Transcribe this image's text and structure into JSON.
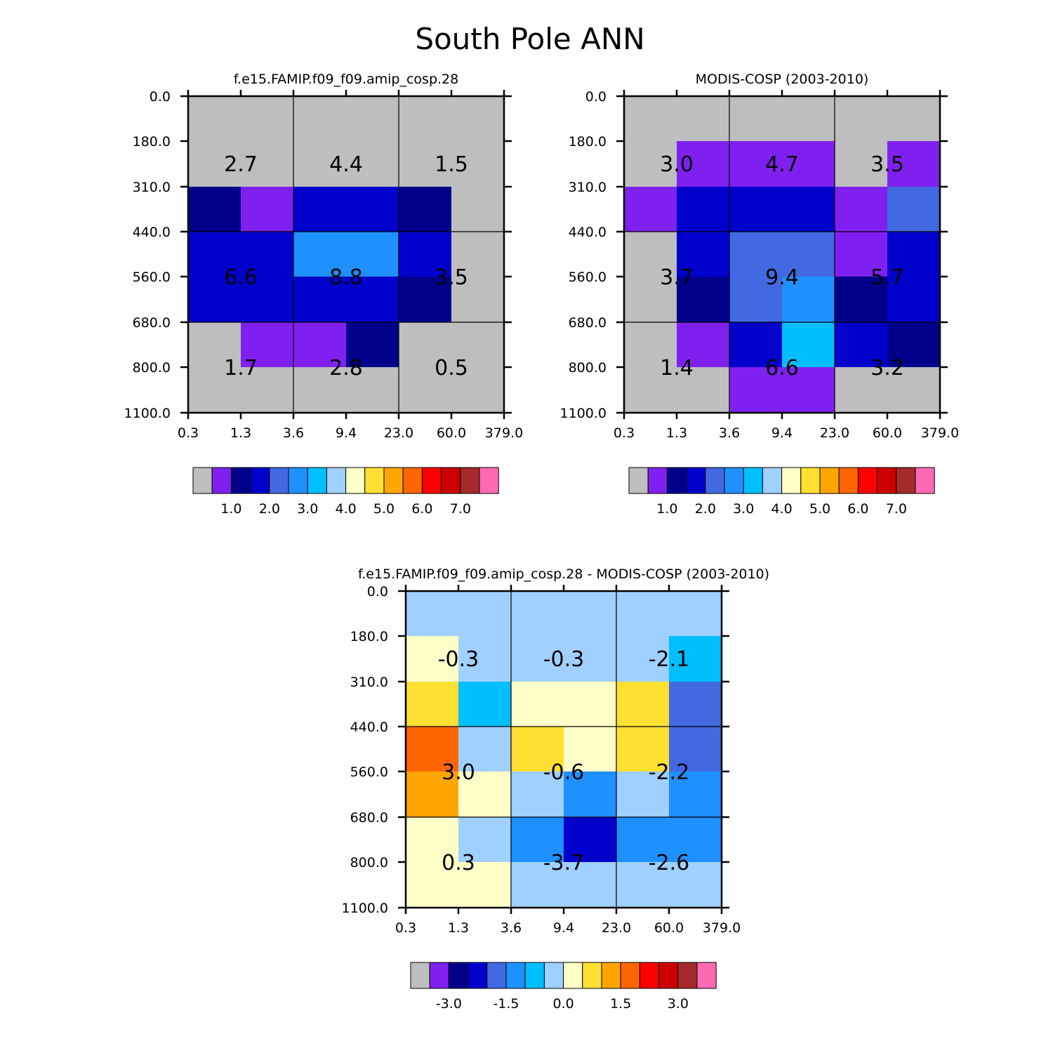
{
  "figure_title": "South Pole ANN",
  "chart_data": [
    {
      "type": "heatmap",
      "title": "f.e15.FAMIP.f09_f09.amip_cosp.28",
      "x_ticks": [
        "0.3",
        "1.3",
        "3.6",
        "9.4",
        "23.0",
        "60.0",
        "379.0"
      ],
      "y_ticks": [
        "0.0",
        "180.0",
        "310.0",
        "440.0",
        "560.0",
        "680.0",
        "800.0",
        "1100.0"
      ],
      "grid": [
        [
          0,
          0,
          0,
          0,
          0,
          0
        ],
        [
          0,
          0,
          0,
          0,
          0,
          0
        ],
        [
          2,
          1,
          3,
          3,
          2,
          0
        ],
        [
          3,
          3,
          5,
          5,
          3,
          0
        ],
        [
          3,
          3,
          3,
          3,
          2,
          0
        ],
        [
          0,
          1,
          1,
          2,
          0,
          0
        ],
        [
          0,
          0,
          0,
          0,
          0,
          0
        ]
      ],
      "box_values": [
        [
          "2.7",
          "4.4",
          "1.5"
        ],
        [
          "6.6",
          "8.8",
          "3.5"
        ],
        [
          "1.7",
          "2.8",
          "0.5"
        ]
      ],
      "colorbar": {
        "labels": [
          "1.0",
          "2.0",
          "3.0",
          "4.0",
          "5.0",
          "6.0",
          "7.0"
        ],
        "label_after_box": [
          2,
          4,
          6,
          8,
          10,
          12,
          14
        ]
      }
    },
    {
      "type": "heatmap",
      "title": "MODIS-COSP (2003-2010)",
      "x_ticks": [
        "0.3",
        "1.3",
        "3.6",
        "9.4",
        "23.0",
        "60.0",
        "379.0"
      ],
      "y_ticks": [
        "0.0",
        "180.0",
        "310.0",
        "440.0",
        "560.0",
        "680.0",
        "800.0",
        "1100.0"
      ],
      "grid": [
        [
          0,
          0,
          0,
          0,
          0,
          0
        ],
        [
          0,
          1,
          1,
          1,
          0,
          1
        ],
        [
          1,
          3,
          3,
          3,
          1,
          4
        ],
        [
          0,
          3,
          4,
          4,
          1,
          3
        ],
        [
          0,
          2,
          4,
          5,
          2,
          3
        ],
        [
          0,
          1,
          3,
          6,
          3,
          2
        ],
        [
          0,
          0,
          1,
          1,
          0,
          0
        ]
      ],
      "box_values": [
        [
          "3.0",
          "4.7",
          "3.5"
        ],
        [
          "3.7",
          "9.4",
          "5.7"
        ],
        [
          "1.4",
          "6.6",
          "3.2"
        ]
      ],
      "colorbar": {
        "labels": [
          "1.0",
          "2.0",
          "3.0",
          "4.0",
          "5.0",
          "6.0",
          "7.0"
        ],
        "label_after_box": [
          2,
          4,
          6,
          8,
          10,
          12,
          14
        ]
      }
    },
    {
      "type": "heatmap",
      "title": "f.e15.FAMIP.f09_f09.amip_cosp.28 - MODIS-COSP (2003-2010)",
      "x_ticks": [
        "0.3",
        "1.3",
        "3.6",
        "9.4",
        "23.0",
        "60.0",
        "379.0"
      ],
      "y_ticks": [
        "0.0",
        "180.0",
        "310.0",
        "440.0",
        "560.0",
        "680.0",
        "800.0",
        "1100.0"
      ],
      "grid": [
        [
          7,
          7,
          7,
          7,
          7,
          7
        ],
        [
          8,
          7,
          7,
          7,
          7,
          6
        ],
        [
          9,
          6,
          8,
          8,
          9,
          4
        ],
        [
          11,
          7,
          9,
          8,
          9,
          4
        ],
        [
          10,
          8,
          7,
          5,
          7,
          5
        ],
        [
          8,
          7,
          5,
          3,
          5,
          5
        ],
        [
          8,
          8,
          7,
          7,
          7,
          7
        ]
      ],
      "box_values": [
        [
          "-0.3",
          "-0.3",
          "-2.1"
        ],
        [
          "3.0",
          "-0.6",
          "-2.2"
        ],
        [
          "0.3",
          "-3.7",
          "-2.6"
        ]
      ],
      "colorbar": {
        "labels": [
          "-3.0",
          "-1.5",
          "0.0",
          "1.5",
          "3.0"
        ],
        "label_after_box": [
          2,
          5,
          8,
          11,
          14
        ]
      }
    }
  ],
  "colors": [
    "#bebebe",
    "#8020f0",
    "#00008b",
    "#0000cd",
    "#4169e1",
    "#1e90ff",
    "#00bfff",
    "#a0d0ff",
    "#ffffc8",
    "#ffe030",
    "#ffa500",
    "#ff6600",
    "#ff0000",
    "#cd0000",
    "#a52a2a",
    "#ff69b4"
  ]
}
